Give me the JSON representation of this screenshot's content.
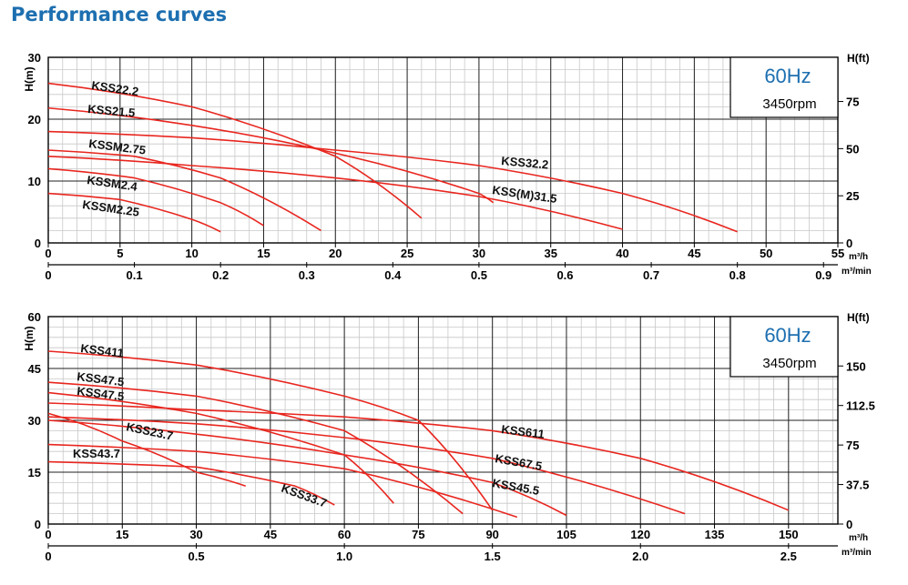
{
  "page": {
    "title": "Performance curves"
  },
  "chart_data": [
    {
      "type": "line",
      "badge": {
        "freq": "60Hz",
        "rpm": "3450rpm"
      },
      "ylabel": "H(m)",
      "ylabel_right": "H(ft)",
      "xunit_top": "m³/h",
      "xunit_bottom": "m³/min",
      "xlim": [
        0,
        55
      ],
      "ylim": [
        0,
        30
      ],
      "x_ticks": [
        0,
        5,
        10,
        15,
        20,
        25,
        30,
        35,
        40,
        45,
        50,
        55
      ],
      "y_ticks": [
        0,
        10,
        20,
        30
      ],
      "x2_ticks": [
        "0",
        "0.1",
        "0.2",
        "0.3",
        "0.4",
        "0.5",
        "0.6",
        "0.7",
        "0.8",
        "0.9"
      ],
      "y_right_ticks": [
        "0",
        "25",
        "50",
        "75"
      ],
      "grid": true,
      "series": [
        {
          "name": "KSS22.2",
          "x": [
            0,
            10,
            20,
            26
          ],
          "y": [
            25.8,
            22.0,
            14.0,
            4.0
          ]
        },
        {
          "name": "KSS21.5",
          "x": [
            0,
            10,
            20,
            30,
            31
          ],
          "y": [
            21.8,
            19.0,
            14.5,
            8.0,
            6.5
          ]
        },
        {
          "name": "KSSM2.75",
          "x": [
            0,
            6,
            12,
            19
          ],
          "y": [
            15.0,
            14.0,
            10.5,
            2.0
          ]
        },
        {
          "name": "KSSM2.4",
          "x": [
            0,
            6,
            12,
            15
          ],
          "y": [
            12.0,
            10.5,
            6.5,
            2.8
          ]
        },
        {
          "name": "KSSM2.25",
          "x": [
            0,
            5,
            10,
            12
          ],
          "y": [
            8.0,
            7.0,
            3.8,
            1.8
          ]
        },
        {
          "name": "KSS32.2",
          "x": [
            0,
            10,
            20,
            30,
            40,
            48
          ],
          "y": [
            18.0,
            17.0,
            15.0,
            12.5,
            8.0,
            1.8
          ]
        },
        {
          "name": "KSS(M)31.5",
          "x": [
            0,
            10,
            20,
            30,
            40
          ],
          "y": [
            14.0,
            12.5,
            10.5,
            7.5,
            2.2
          ]
        }
      ]
    },
    {
      "type": "line",
      "badge": {
        "freq": "60Hz",
        "rpm": "3450rpm"
      },
      "ylabel": "H(m)",
      "ylabel_right": "H(ft)",
      "xunit_top": "m³/h",
      "xunit_bottom": "m³/min",
      "xlim": [
        0,
        160
      ],
      "ylim": [
        0,
        60
      ],
      "x_ticks": [
        0,
        15,
        30,
        45,
        60,
        75,
        90,
        105,
        120,
        135,
        150
      ],
      "y_ticks": [
        0,
        15,
        30,
        45,
        60
      ],
      "x2_ticks": [
        "0",
        "0.5",
        "1.0",
        "1.5",
        "2.0",
        "2.5"
      ],
      "y_right_ticks": [
        "0",
        "37.5",
        "75",
        "112.5",
        "150"
      ],
      "grid": true,
      "series": [
        {
          "name": "KSS411",
          "x": [
            0,
            30,
            60,
            75,
            90
          ],
          "y": [
            50.0,
            46.0,
            37.0,
            30.0,
            4.0
          ]
        },
        {
          "name": "KSS47.5",
          "x": [
            0,
            30,
            60,
            84
          ],
          "y": [
            41.0,
            37.0,
            27.0,
            3.0
          ]
        },
        {
          "name": "KSS47.5",
          "x": [
            0,
            30,
            60,
            70
          ],
          "y": [
            38.0,
            32.0,
            20.0,
            6.0
          ]
        },
        {
          "name": "KSS611",
          "x": [
            0,
            30,
            60,
            90,
            120,
            150
          ],
          "y": [
            35.0,
            33.0,
            31.0,
            27.0,
            19.0,
            4.0
          ]
        },
        {
          "name": "KSS67.5",
          "x": [
            0,
            30,
            60,
            90,
            129
          ],
          "y": [
            31.0,
            29.0,
            25.0,
            19.0,
            3.0
          ]
        },
        {
          "name": "KSS45.5",
          "x": [
            0,
            30,
            60,
            90,
            105
          ],
          "y": [
            30.0,
            26.0,
            20.0,
            12.0,
            2.5
          ]
        },
        {
          "name": "KSS23.7",
          "x": [
            0,
            15,
            30,
            40
          ],
          "y": [
            32.0,
            24.0,
            15.0,
            11.0
          ]
        },
        {
          "name": "KSS43.7",
          "x": [
            0,
            30,
            60,
            95
          ],
          "y": [
            23.0,
            21.0,
            16.0,
            2.0
          ]
        },
        {
          "name": "KSS33.7",
          "x": [
            0,
            30,
            50,
            58
          ],
          "y": [
            18.0,
            16.5,
            11.0,
            5.5
          ]
        }
      ]
    }
  ]
}
